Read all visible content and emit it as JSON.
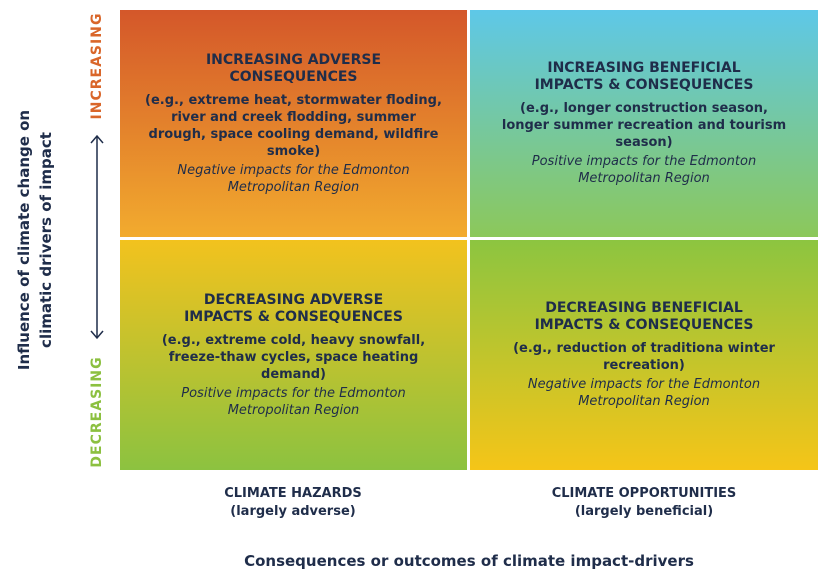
{
  "axis": {
    "y_title_line1": "Influence of climate change on",
    "y_title_line2": "climatic drivers of impact",
    "y_top": "INCREASING",
    "y_bottom": "DECREASING",
    "x_title": "Consequences or outcomes of climate impact-drivers"
  },
  "columns": [
    {
      "label": "CLIMATE HAZARDS",
      "sublabel": "(largely adverse)"
    },
    {
      "label": "CLIMATE OPPORTUNITIES",
      "sublabel": "(largely beneficial)"
    }
  ],
  "quadrants": [
    {
      "title": "INCREASING ADVERSE CONSEQUENCES",
      "examples": "(e.g., extreme heat, stormwater floding, river and creek flodding, summer drough, space cooling demand, wildfire smoke)",
      "note": "Negative impacts for the Edmonton Metropolitan Region"
    },
    {
      "title": "INCREASING BENEFICIAL IMPACTS & CONSEQUENCES",
      "examples": "(e.g., longer construction season, longer summer recreation and tourism season)",
      "note": "Positive impacts for the Edmonton Metropolitan Region"
    },
    {
      "title": "DECREASING ADVERSE IMPACTS & CONSEQUENCES",
      "examples": "(e.g., extreme cold, heavy snowfall, freeze-thaw cycles, space heating demand)",
      "note": "Positive impacts for the Edmonton Metropolitan Region"
    },
    {
      "title": "DECREASING BENEFICIAL IMPACTS & CONSEQUENCES",
      "examples": "(e.g., reduction of traditiona winter recreation)",
      "note": "Negative impacts for the Edmonton Metropolitan Region"
    }
  ]
}
